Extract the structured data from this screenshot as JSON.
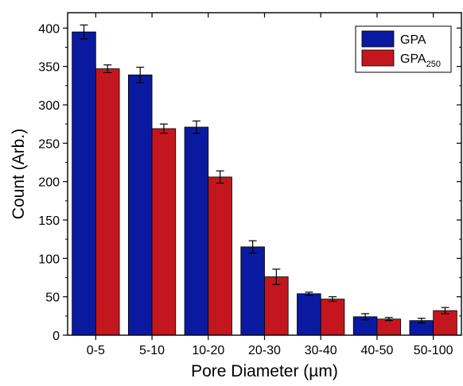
{
  "chart_data": {
    "type": "bar",
    "title": "",
    "xlabel": "Pore Diameter (µm)",
    "ylabel": "Count (Arb.)",
    "ylim": [
      0,
      420
    ],
    "yticks": [
      0,
      50,
      100,
      150,
      200,
      250,
      300,
      350,
      400
    ],
    "categories": [
      "0-5",
      "5-10",
      "10-20",
      "20-30",
      "30-40",
      "40-50",
      "50-100"
    ],
    "series": [
      {
        "name": "GPA",
        "color": "#0a1aa0",
        "values": [
          395,
          339,
          271,
          115,
          54,
          24,
          19
        ],
        "errors": [
          9,
          10,
          8,
          8,
          2,
          4,
          3
        ]
      },
      {
        "name": "GPA250",
        "name_base": "GPA",
        "name_subscript": "250",
        "color": "#c3161f",
        "values": [
          347,
          269,
          206,
          76,
          47,
          21,
          32
        ],
        "errors": [
          5,
          6,
          8,
          10,
          3,
          2,
          4
        ]
      }
    ],
    "legend_position": "top-right",
    "grid": false
  }
}
